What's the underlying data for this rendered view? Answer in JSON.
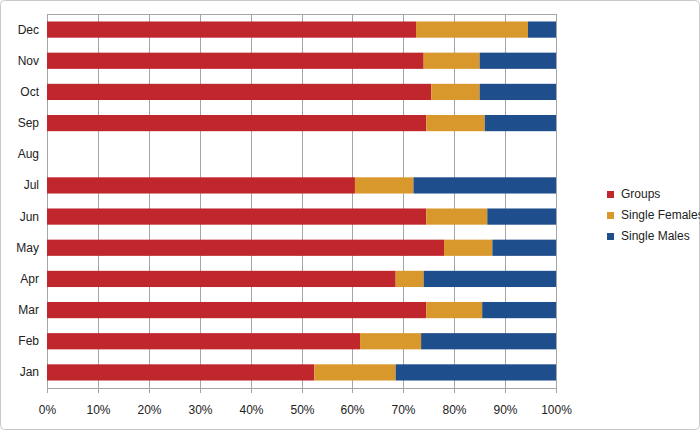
{
  "chart_data": {
    "type": "bar",
    "orientation": "horizontal",
    "stacked": true,
    "grid": true,
    "legend": "right",
    "categories": [
      "Jan",
      "Feb",
      "Mar",
      "Apr",
      "May",
      "Jun",
      "Jul",
      "Aug",
      "Sep",
      "Oct",
      "Nov",
      "Dec"
    ],
    "series": [
      {
        "name": "Groups",
        "color": "#c0272d",
        "values": [
          52.5,
          61.5,
          74.5,
          68.5,
          78,
          74.5,
          60.5,
          null,
          74.5,
          75.5,
          74,
          72.5
        ]
      },
      {
        "name": "Single Females",
        "color": "#d9982b",
        "values": [
          16,
          12,
          11,
          5.5,
          9.5,
          12,
          11.5,
          null,
          11.5,
          9.5,
          11,
          22
        ]
      },
      {
        "name": "Single Males",
        "color": "#1f4e8c",
        "values": [
          31.5,
          26.5,
          14.5,
          26,
          12.5,
          13.5,
          28,
          null,
          14,
          15,
          15,
          5.5
        ]
      }
    ],
    "xlim": [
      0,
      100
    ],
    "xticks": [
      {
        "value": 0,
        "label": "0%"
      },
      {
        "value": 10,
        "label": "10%"
      },
      {
        "value": 20,
        "label": "20%"
      },
      {
        "value": 30,
        "label": "30%"
      },
      {
        "value": 40,
        "label": "40%"
      },
      {
        "value": 50,
        "label": "50%"
      },
      {
        "value": 60,
        "label": "60%"
      },
      {
        "value": 70,
        "label": "70%"
      },
      {
        "value": 80,
        "label": "80%"
      },
      {
        "value": 90,
        "label": "90%"
      },
      {
        "value": 100,
        "label": "100%"
      }
    ]
  }
}
